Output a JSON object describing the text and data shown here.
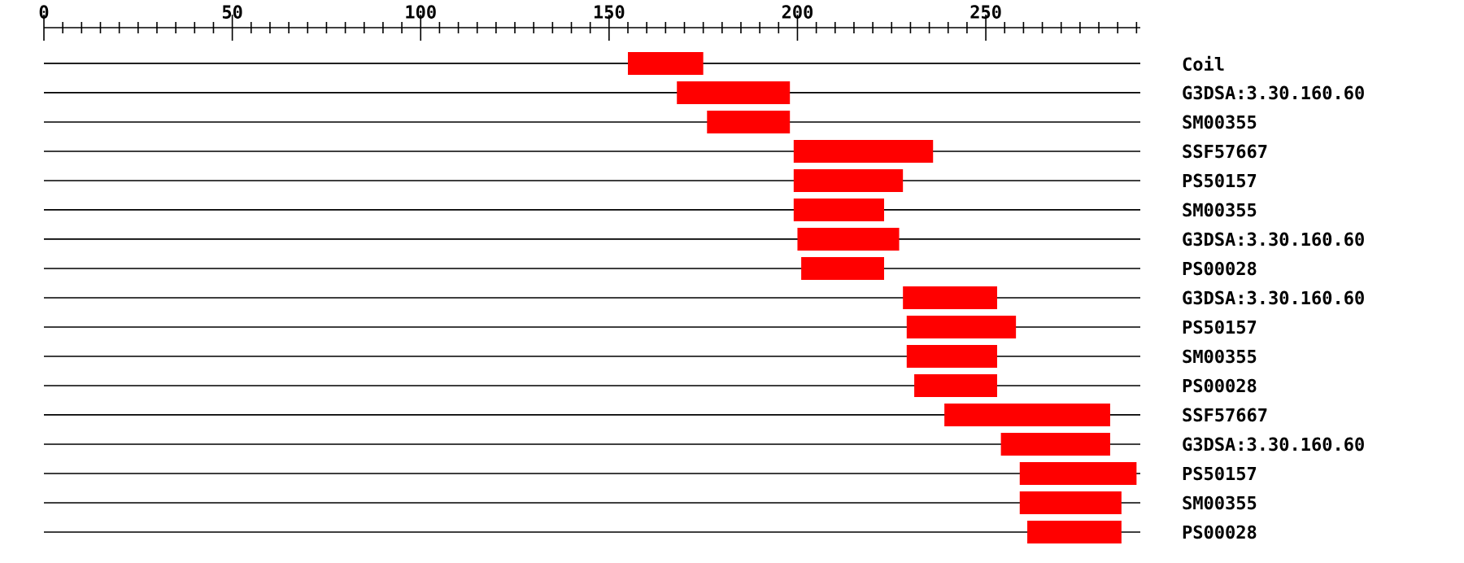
{
  "chart_data": {
    "type": "bar",
    "orientation": "horizontal",
    "color": "#ff0000",
    "grid": "y",
    "categories": [
      "Coil",
      "G3DSA:3.30.160.60",
      "SM00355",
      "SSF57667",
      "PS50157",
      "SM00355",
      "G3DSA:3.30.160.60",
      "PS00028",
      "G3DSA:3.30.160.60",
      "PS50157",
      "SM00355",
      "PS00028",
      "SSF57667",
      "G3DSA:3.30.160.60",
      "PS50157",
      "SM00355",
      "PS00028"
    ],
    "base": [
      155,
      168,
      176,
      199,
      199,
      199,
      200,
      201,
      228,
      229,
      229,
      231,
      239,
      254,
      259,
      259,
      261
    ],
    "values": [
      20,
      30,
      22,
      37,
      29,
      24,
      27,
      22,
      25,
      29,
      24,
      22,
      44,
      29,
      31,
      27,
      25
    ],
    "xlim": [
      0,
      291
    ],
    "xticks": [
      0,
      {
        "value": 5,
        "label": null
      },
      {
        "value": 10,
        "label": null
      },
      {
        "value": 15,
        "label": null
      },
      {
        "value": 20,
        "label": null
      },
      {
        "value": 25,
        "label": null
      },
      {
        "value": 30,
        "label": null
      },
      {
        "value": 35,
        "label": null
      },
      {
        "value": 40,
        "label": null
      },
      {
        "value": 45,
        "label": null
      },
      50,
      {
        "value": 55,
        "label": null
      },
      {
        "value": 60,
        "label": null
      },
      {
        "value": 65,
        "label": null
      },
      {
        "value": 70,
        "label": null
      },
      {
        "value": 75,
        "label": null
      },
      {
        "value": 80,
        "label": null
      },
      {
        "value": 85,
        "label": null
      },
      {
        "value": 90,
        "label": null
      },
      {
        "value": 95,
        "label": null
      },
      100,
      {
        "value": 105,
        "label": null
      },
      {
        "value": 110,
        "label": null
      },
      {
        "value": 115,
        "label": null
      },
      {
        "value": 120,
        "label": null
      },
      {
        "value": 125,
        "label": null
      },
      {
        "value": 130,
        "label": null
      },
      {
        "value": 135,
        "label": null
      },
      {
        "value": 140,
        "label": null
      },
      {
        "value": 145,
        "label": null
      },
      150,
      {
        "value": 155,
        "label": null
      },
      {
        "value": 160,
        "label": null
      },
      {
        "value": 165,
        "label": null
      },
      {
        "value": 170,
        "label": null
      },
      {
        "value": 175,
        "label": null
      },
      {
        "value": 180,
        "label": null
      },
      {
        "value": 185,
        "label": null
      },
      {
        "value": 190,
        "label": null
      },
      {
        "value": 195,
        "label": null
      },
      200,
      {
        "value": 205,
        "label": null
      },
      {
        "value": 210,
        "label": null
      },
      {
        "value": 215,
        "label": null
      },
      {
        "value": 220,
        "label": null
      },
      {
        "value": 225,
        "label": null
      },
      {
        "value": 230,
        "label": null
      },
      {
        "value": 235,
        "label": null
      },
      {
        "value": 240,
        "label": null
      },
      {
        "value": 245,
        "label": null
      },
      250,
      {
        "value": 255,
        "label": null
      },
      {
        "value": 260,
        "label": null
      },
      {
        "value": 265,
        "label": null
      },
      {
        "value": 270,
        "label": null
      },
      {
        "value": 275,
        "label": null
      },
      {
        "value": 280,
        "label": null
      },
      {
        "value": 285,
        "label": null
      },
      {
        "value": 290,
        "label": null
      }
    ]
  }
}
